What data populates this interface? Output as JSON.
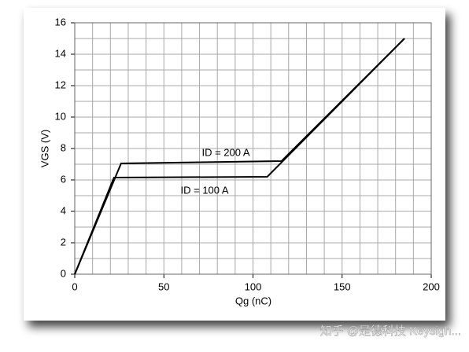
{
  "chart_data": {
    "type": "line",
    "x_label": "Qg (nC)",
    "y_label": "VGS (V)",
    "xlim": [
      0,
      200
    ],
    "xticks": [
      0,
      50,
      100,
      150,
      200
    ],
    "ylim": [
      0,
      16
    ],
    "yticks": [
      0,
      2,
      4,
      6,
      8,
      10,
      12,
      14,
      16
    ],
    "grid": true,
    "grid_subdivisions": [
      5,
      2
    ],
    "series": [
      {
        "name": "ID = 200 A",
        "color": "#000000",
        "x": [
          0,
          26,
          116,
          185
        ],
        "values": [
          0,
          7.05,
          7.2,
          15
        ]
      },
      {
        "name": "ID = 100 A",
        "color": "#000000",
        "x": [
          0,
          22,
          108,
          185
        ],
        "values": [
          0,
          6.15,
          6.2,
          15
        ]
      }
    ]
  },
  "watermark": "知乎 @是德科技 Keysigh..."
}
